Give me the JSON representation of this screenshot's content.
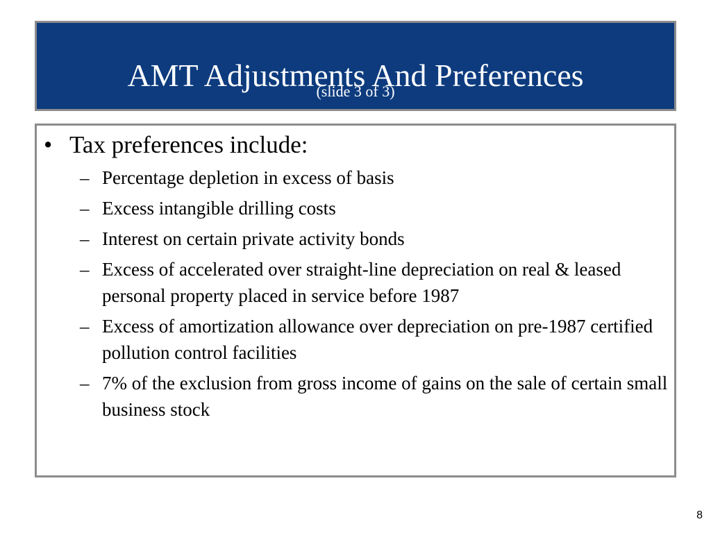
{
  "slide": {
    "title": "AMT Adjustments And Preferences",
    "subtitle": "(slide 3 of 3)",
    "page_number": "8"
  },
  "content": {
    "bullet_marker": "•",
    "sub_marker": "–",
    "main_point": "Tax preferences include:",
    "items": [
      "Percentage depletion in excess of basis",
      "Excess intangible drilling costs",
      "Interest on certain private activity bonds",
      "Excess of accelerated over straight-line depreciation on real & leased personal property placed in service before 1987",
      "Excess of amortization allowance over depreciation on pre-1987 certified pollution control facilities",
      "7% of the exclusion from gross income of gains on the sale of certain small business stock"
    ]
  },
  "colors": {
    "title_background": "#0d3b7e",
    "title_text": "#ffffff",
    "border": "#8c8c8c"
  }
}
